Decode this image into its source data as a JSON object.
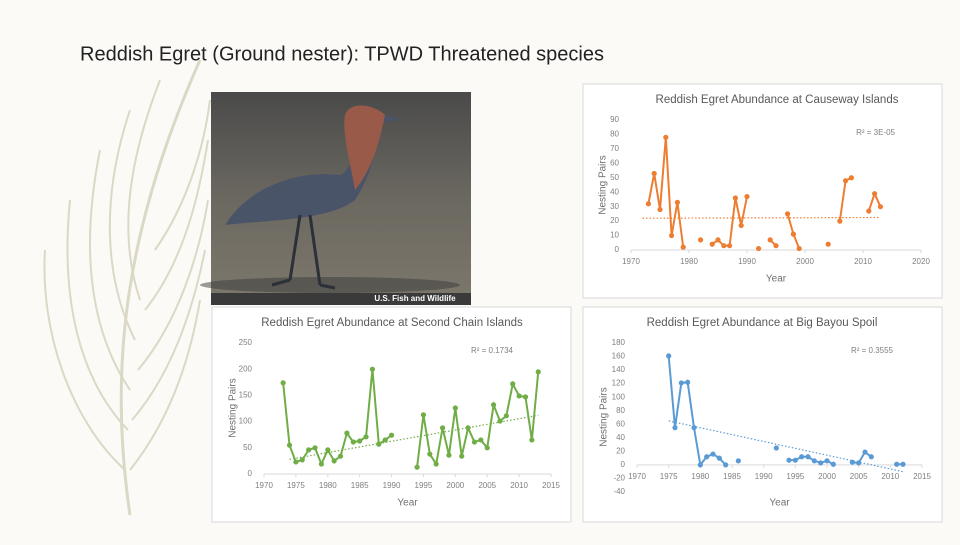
{
  "slide": {
    "title": "Reddish Egret (Ground nester): TPWD Threatened species",
    "photo_credit": "U.S. Fish and Wildlife"
  },
  "chart_data": [
    {
      "type": "line",
      "title": "Reddish Egret Abundance at Causeway Islands",
      "x_label": "Year",
      "y_label": "Nesting Pairs",
      "annotation": "R² = 3E-05",
      "color": "#ed7d31",
      "x": [
        1973,
        1974,
        1975,
        1976,
        1977,
        1978,
        1979,
        1980,
        1981,
        1982,
        1983,
        1984,
        1985,
        1986,
        1987,
        1988,
        1989,
        1990,
        1991,
        1992,
        1993,
        1994,
        1995,
        1996,
        1997,
        1998,
        1999,
        2000,
        2001,
        2002,
        2003,
        2004,
        2005,
        2006,
        2007,
        2008,
        2009,
        2010,
        2011,
        2012,
        2013
      ],
      "values": [
        32,
        53,
        28,
        78,
        10,
        33,
        2,
        null,
        null,
        7,
        null,
        4,
        7,
        3,
        3,
        36,
        17,
        37,
        null,
        1,
        null,
        7,
        3,
        null,
        25,
        11,
        1,
        null,
        null,
        null,
        null,
        4,
        null,
        20,
        48,
        50,
        null,
        null,
        27,
        39,
        30
      ],
      "trendline": {
        "x": [
          1972,
          2013
        ],
        "values": [
          22,
          22.5
        ]
      },
      "xlim": [
        1970,
        2020
      ],
      "xticks": [
        1970,
        1980,
        1990,
        2000,
        2010,
        2020
      ],
      "ylim": [
        0,
        90
      ],
      "yticks": [
        0,
        10,
        20,
        30,
        40,
        50,
        60,
        70,
        80,
        90
      ]
    },
    {
      "type": "line",
      "title": "Reddish Egret Abundance at Second Chain Islands",
      "x_label": "Year",
      "y_label": "Nesting Pairs",
      "annotation": "R² = 0.1734",
      "color": "#70ad47",
      "x": [
        1973,
        1974,
        1975,
        1976,
        1977,
        1978,
        1979,
        1980,
        1981,
        1982,
        1983,
        1984,
        1985,
        1986,
        1987,
        1988,
        1989,
        1990,
        1991,
        1992,
        1993,
        1994,
        1995,
        1996,
        1997,
        1998,
        1999,
        2000,
        2001,
        2002,
        2003,
        2004,
        2005,
        2006,
        2007,
        2008,
        2009,
        2010,
        2011,
        2012,
        2013
      ],
      "values": [
        174,
        55,
        23,
        27,
        46,
        50,
        19,
        46,
        25,
        34,
        78,
        61,
        63,
        71,
        200,
        57,
        65,
        74,
        null,
        null,
        null,
        13,
        113,
        38,
        19,
        88,
        36,
        126,
        34,
        88,
        61,
        65,
        50,
        132,
        101,
        111,
        172,
        149,
        147,
        65,
        195
      ],
      "trendline": {
        "x": [
          1974,
          2013
        ],
        "values": [
          28,
          112
        ]
      },
      "xlim": [
        1970,
        2015
      ],
      "xticks": [
        1970,
        1975,
        1980,
        1985,
        1990,
        1995,
        2000,
        2005,
        2010,
        2015
      ],
      "ylim": [
        0,
        250
      ],
      "yticks": [
        0,
        50,
        100,
        150,
        200,
        250
      ]
    },
    {
      "type": "line",
      "title": "Reddish Egret Abundance at Big Bayou Spoil",
      "x_label": "Year",
      "y_label": "Nesting Pairs",
      "annotation": "R² = 0.3555",
      "color": "#5b9bd5",
      "x": [
        1975,
        1976,
        1977,
        1978,
        1979,
        1980,
        1981,
        1982,
        1983,
        1984,
        1985,
        1986,
        1987,
        1988,
        1989,
        1990,
        1991,
        1992,
        1993,
        1994,
        1995,
        1996,
        1997,
        1998,
        1999,
        2000,
        2001,
        2002,
        2003,
        2004,
        2005,
        2006,
        2007,
        2008,
        2009,
        2010,
        2011,
        2012
      ],
      "values": [
        161,
        55,
        121,
        122,
        55,
        0,
        12,
        16,
        10,
        0,
        null,
        6,
        null,
        null,
        null,
        null,
        null,
        25,
        null,
        7,
        7,
        12,
        12,
        6,
        3,
        6,
        1,
        null,
        null,
        4,
        3,
        19,
        12,
        null,
        null,
        null,
        1,
        1
      ],
      "trendline": {
        "x": [
          1975,
          2012
        ],
        "values": [
          65,
          -10
        ]
      },
      "xlim": [
        1970,
        2015
      ],
      "xticks": [
        1970,
        1975,
        1980,
        1985,
        1990,
        1995,
        2000,
        2005,
        2010,
        2015
      ],
      "ylim": [
        -40,
        180
      ],
      "yticks": [
        -40,
        -20,
        0,
        20,
        40,
        60,
        80,
        100,
        120,
        140,
        160,
        180
      ]
    }
  ]
}
